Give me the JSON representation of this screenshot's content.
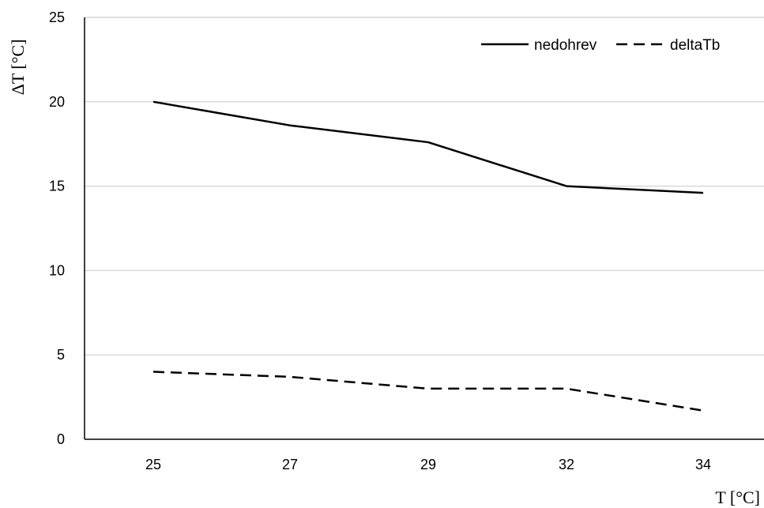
{
  "chart_data": {
    "type": "line",
    "categories": [
      "25",
      "27",
      "29",
      "32",
      "34"
    ],
    "series": [
      {
        "name": "nedohrev",
        "values": [
          20,
          18.6,
          17.6,
          15,
          14.6
        ],
        "dash": "solid",
        "color": "#000000"
      },
      {
        "name": "deltaTb",
        "values": [
          4,
          3.7,
          3,
          3,
          1.7
        ],
        "dash": "dashed",
        "color": "#000000"
      }
    ],
    "ylim": [
      0,
      25
    ],
    "yticks": [
      "0",
      "5",
      "10",
      "15",
      "20",
      "25"
    ],
    "ylabel": "ΔT [°C]",
    "xlabel": "T [°C]",
    "grid": "horizontal",
    "grid_color": "#d9d9d9",
    "legend_position": "top-right"
  }
}
